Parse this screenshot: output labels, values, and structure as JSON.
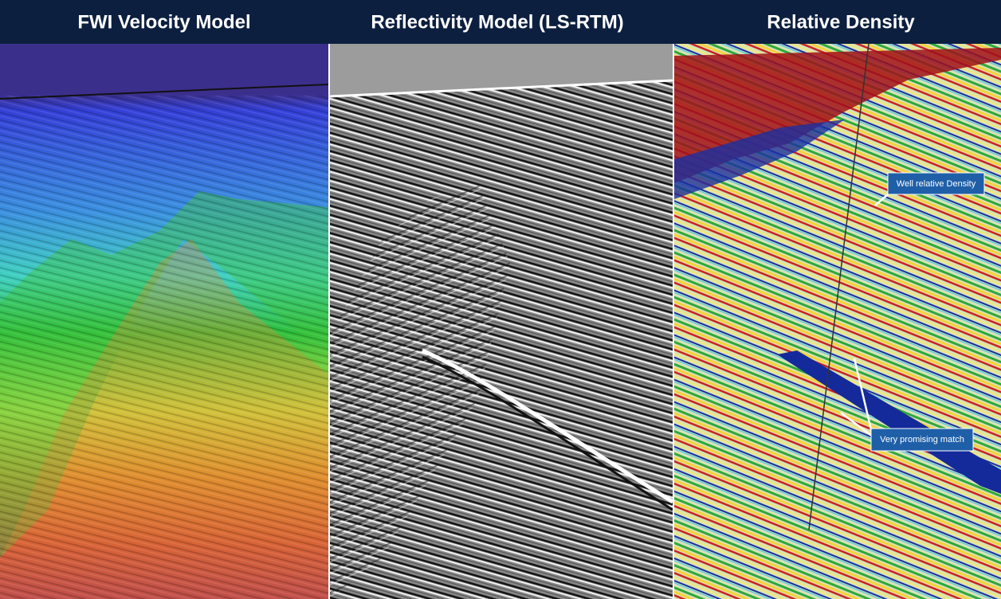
{
  "panels": [
    {
      "title": "FWI Velocity Model"
    },
    {
      "title": "Reflectivity Model (LS-RTM)"
    },
    {
      "title": "Relative Density"
    }
  ],
  "annotations": [
    {
      "text": "Well relative Density"
    },
    {
      "text": "Very promising match"
    }
  ]
}
